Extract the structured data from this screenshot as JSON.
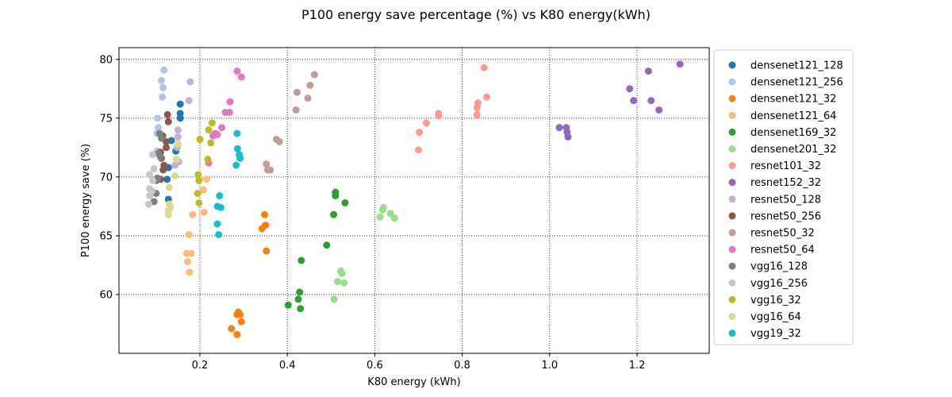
{
  "chart_data": {
    "type": "scatter",
    "title": "P100 energy save percentage (%) vs K80 energy(kWh)",
    "xlabel": "K80 energy (kWh)",
    "ylabel": "P100 energy save (%)",
    "xlim": [
      0.015,
      1.365
    ],
    "ylim": [
      55.0,
      81.0
    ],
    "xticks": [
      0.2,
      0.4,
      0.6,
      0.8,
      1.0,
      1.2
    ],
    "xtick_labels": [
      "0.2",
      "0.4",
      "0.6",
      "0.8",
      "1.0",
      "1.2"
    ],
    "yticks": [
      60,
      65,
      70,
      75,
      80
    ],
    "ytick_labels": [
      "60",
      "65",
      "70",
      "75",
      "80"
    ],
    "grid": true,
    "grid_style": "dotted",
    "legend_position": "outside-right",
    "series": [
      {
        "name": "densenet121_128",
        "color": "#1f77b4",
        "points": [
          [
            0.155,
            76.2
          ],
          [
            0.155,
            75.4
          ],
          [
            0.155,
            75.0
          ],
          [
            0.135,
            73.1
          ],
          [
            0.145,
            72.2
          ],
          [
            0.128,
            70.8
          ],
          [
            0.125,
            69.8
          ],
          [
            0.128,
            68.1
          ]
        ]
      },
      {
        "name": "densenet121_256",
        "color": "#aec7e8",
        "points": [
          [
            0.118,
            79.1
          ],
          [
            0.112,
            78.2
          ],
          [
            0.116,
            77.6
          ],
          [
            0.114,
            76.8
          ],
          [
            0.103,
            75.0
          ],
          [
            0.105,
            74.2
          ],
          [
            0.102,
            73.7
          ],
          [
            0.103,
            72.2
          ]
        ]
      },
      {
        "name": "densenet121_32",
        "color": "#ff7f0e",
        "points": [
          [
            0.348,
            66.8
          ],
          [
            0.35,
            65.9
          ],
          [
            0.342,
            65.6
          ],
          [
            0.352,
            63.7
          ],
          [
            0.288,
            58.5
          ],
          [
            0.292,
            58.3
          ],
          [
            0.285,
            58.3
          ],
          [
            0.295,
            57.7
          ],
          [
            0.272,
            57.1
          ],
          [
            0.285,
            56.6
          ]
        ]
      },
      {
        "name": "densenet121_64",
        "color": "#ffbb78",
        "points": [
          [
            0.215,
            69.8
          ],
          [
            0.208,
            68.9
          ],
          [
            0.21,
            67.0
          ],
          [
            0.183,
            66.8
          ],
          [
            0.175,
            65.1
          ],
          [
            0.17,
            63.5
          ],
          [
            0.18,
            63.5
          ],
          [
            0.172,
            62.8
          ],
          [
            0.176,
            61.9
          ]
        ]
      },
      {
        "name": "densenet169_32",
        "color": "#2ca02c",
        "points": [
          [
            0.51,
            68.7
          ],
          [
            0.51,
            68.4
          ],
          [
            0.532,
            67.8
          ],
          [
            0.506,
            66.8
          ],
          [
            0.49,
            64.2
          ],
          [
            0.432,
            62.9
          ],
          [
            0.428,
            60.2
          ],
          [
            0.425,
            59.6
          ],
          [
            0.402,
            59.1
          ],
          [
            0.43,
            58.8
          ]
        ]
      },
      {
        "name": "densenet201_32",
        "color": "#98df8a",
        "points": [
          [
            0.62,
            67.4
          ],
          [
            0.618,
            67.2
          ],
          [
            0.636,
            66.9
          ],
          [
            0.645,
            66.5
          ],
          [
            0.612,
            66.6
          ],
          [
            0.522,
            62.0
          ],
          [
            0.525,
            61.8
          ],
          [
            0.53,
            61.0
          ],
          [
            0.515,
            61.1
          ],
          [
            0.507,
            59.6
          ]
        ]
      },
      {
        "name": "resnet101_32",
        "color": "#ff9896",
        "points": [
          [
            0.85,
            79.3
          ],
          [
            0.856,
            76.8
          ],
          [
            0.836,
            76.3
          ],
          [
            0.834,
            75.9
          ],
          [
            0.834,
            75.3
          ],
          [
            0.746,
            75.4
          ],
          [
            0.746,
            75.2
          ],
          [
            0.718,
            74.6
          ],
          [
            0.702,
            73.8
          ],
          [
            0.7,
            72.3
          ]
        ]
      },
      {
        "name": "resnet152_32",
        "color": "#9467bd",
        "points": [
          [
            1.298,
            79.6
          ],
          [
            1.226,
            79.0
          ],
          [
            1.183,
            77.5
          ],
          [
            1.232,
            76.5
          ],
          [
            1.192,
            76.5
          ],
          [
            1.25,
            75.7
          ],
          [
            1.022,
            74.2
          ],
          [
            1.038,
            74.2
          ],
          [
            1.04,
            73.8
          ],
          [
            1.042,
            73.4
          ]
        ]
      },
      {
        "name": "resnet50_128",
        "color": "#c5b0d5",
        "points": [
          [
            0.178,
            78.1
          ],
          [
            0.175,
            76.5
          ],
          [
            0.15,
            74.0
          ],
          [
            0.15,
            73.4
          ],
          [
            0.148,
            72.5
          ],
          [
            0.152,
            71.3
          ],
          [
            0.143,
            71.0
          ]
        ]
      },
      {
        "name": "resnet50_256",
        "color": "#8c564b",
        "points": [
          [
            0.126,
            75.3
          ],
          [
            0.128,
            74.7
          ],
          [
            0.115,
            73.5
          ],
          [
            0.123,
            73.0
          ],
          [
            0.123,
            72.5
          ],
          [
            0.11,
            72.1
          ],
          [
            0.112,
            71.6
          ],
          [
            0.118,
            71.0
          ],
          [
            0.116,
            70.6
          ],
          [
            0.11,
            69.8
          ]
        ]
      },
      {
        "name": "resnet50_32",
        "color": "#c49c94",
        "points": [
          [
            0.462,
            78.7
          ],
          [
            0.452,
            77.8
          ],
          [
            0.422,
            77.2
          ],
          [
            0.447,
            76.7
          ],
          [
            0.42,
            75.7
          ],
          [
            0.375,
            73.2
          ],
          [
            0.382,
            73.0
          ],
          [
            0.352,
            71.1
          ],
          [
            0.355,
            70.6
          ],
          [
            0.361,
            70.6
          ]
        ]
      },
      {
        "name": "resnet50_64",
        "color": "#e377c2",
        "points": [
          [
            0.285,
            79.0
          ],
          [
            0.295,
            78.5
          ],
          [
            0.269,
            76.4
          ],
          [
            0.268,
            75.5
          ],
          [
            0.258,
            75.5
          ],
          [
            0.25,
            74.2
          ],
          [
            0.235,
            73.7
          ],
          [
            0.23,
            73.5
          ],
          [
            0.24,
            73.6
          ],
          [
            0.22,
            71.2
          ]
        ]
      },
      {
        "name": "vgg16_128",
        "color": "#7f7f7f",
        "points": [
          [
            0.108,
            73.7
          ],
          [
            0.112,
            73.3
          ],
          [
            0.105,
            72.0
          ],
          [
            0.11,
            71.7
          ],
          [
            0.103,
            69.9
          ],
          [
            0.101,
            69.7
          ],
          [
            0.1,
            68.6
          ],
          [
            0.095,
            67.9
          ]
        ]
      },
      {
        "name": "vgg16_256",
        "color": "#c7c7c7",
        "points": [
          [
            0.092,
            71.9
          ],
          [
            0.095,
            70.7
          ],
          [
            0.085,
            70.2
          ],
          [
            0.092,
            69.7
          ],
          [
            0.085,
            69.0
          ],
          [
            0.09,
            68.8
          ],
          [
            0.085,
            68.4
          ],
          [
            0.083,
            67.7
          ]
        ]
      },
      {
        "name": "vgg16_32",
        "color": "#bcbd22",
        "points": [
          [
            0.228,
            74.6
          ],
          [
            0.22,
            74.0
          ],
          [
            0.2,
            73.2
          ],
          [
            0.225,
            72.9
          ],
          [
            0.218,
            71.5
          ],
          [
            0.196,
            70.2
          ],
          [
            0.198,
            69.7
          ],
          [
            0.195,
            68.6
          ],
          [
            0.198,
            67.8
          ]
        ]
      },
      {
        "name": "vgg16_64",
        "color": "#dbdb8d",
        "points": [
          [
            0.15,
            72.8
          ],
          [
            0.146,
            71.5
          ],
          [
            0.143,
            70.1
          ],
          [
            0.13,
            69.1
          ],
          [
            0.13,
            67.7
          ],
          [
            0.133,
            67.4
          ],
          [
            0.128,
            67.1
          ],
          [
            0.128,
            66.8
          ]
        ]
      },
      {
        "name": "vgg19_32",
        "color": "#17becf",
        "points": [
          [
            0.285,
            73.7
          ],
          [
            0.286,
            72.4
          ],
          [
            0.29,
            71.9
          ],
          [
            0.292,
            71.6
          ],
          [
            0.283,
            71.0
          ],
          [
            0.245,
            68.4
          ],
          [
            0.248,
            67.4
          ],
          [
            0.24,
            67.5
          ],
          [
            0.24,
            66.0
          ],
          [
            0.243,
            65.1
          ]
        ]
      }
    ]
  }
}
